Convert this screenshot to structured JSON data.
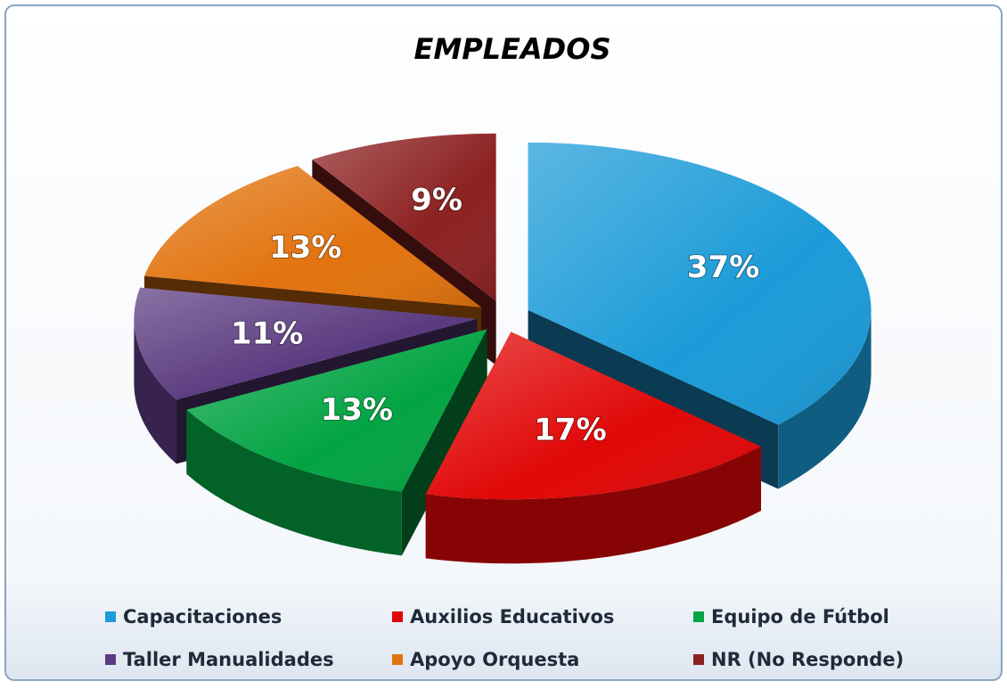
{
  "chart_data": {
    "type": "pie",
    "title": "EMPLEADOS",
    "categories": [
      "Capacitaciones",
      "Auxilios Educativos",
      "Equipo de Fútbol",
      "Taller Manualidades",
      "Apoyo Orquesta",
      "NR (No Responde)"
    ],
    "values": [
      37,
      17,
      13,
      11,
      13,
      9
    ],
    "value_labels": [
      "37%",
      "17%",
      "13%",
      "11%",
      "13%",
      "9%"
    ],
    "colors": [
      "#1b9bd8",
      "#e10707",
      "#03a443",
      "#5b3b80",
      "#e2730e",
      "#8c2121"
    ],
    "legend": "bottom"
  }
}
